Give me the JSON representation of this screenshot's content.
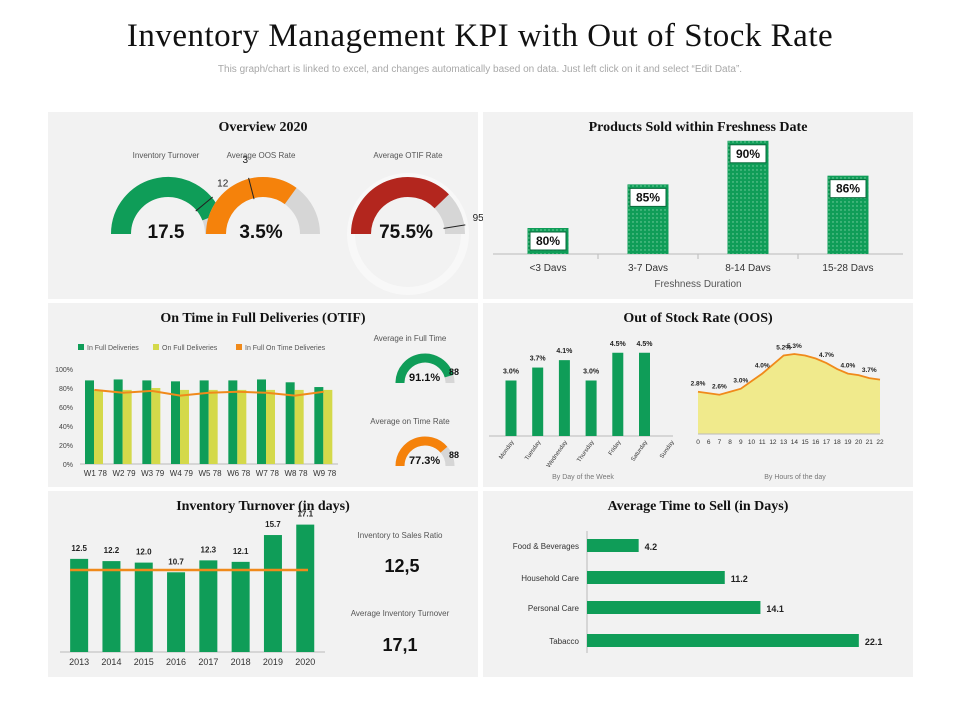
{
  "header": {
    "title": "Inventory Management KPI with Out of Stock Rate",
    "subtitle": "This graph/chart is linked to excel, and changes automatically based on data. Just left click on it and select “Edit Data”."
  },
  "colors": {
    "green": "#0f9d58",
    "orange": "#f5820b",
    "red": "#b3261e",
    "yellow": "#d4d94a",
    "grey": "#d6d6d6",
    "area": "#f0ea8c",
    "line": "#f08a1b"
  },
  "overview": {
    "title": "Overview 2020",
    "gauges": [
      {
        "label": "Inventory Turnover",
        "value_text": "17.5",
        "fraction": 0.88,
        "target": "12",
        "target_fraction": 0.78,
        "color": "green"
      },
      {
        "label": "Average OOS Rate",
        "value_text": "3.5%",
        "fraction": 0.7,
        "target": "3",
        "target_fraction": 0.42,
        "color": "orange"
      },
      {
        "label": "Average OTIF Rate",
        "value_text": "75.5%",
        "fraction": 0.755,
        "target": "95",
        "target_fraction": 0.95,
        "color": "red"
      }
    ]
  },
  "chart_data": [
    {
      "id": "freshness",
      "type": "bar",
      "title": "Products Sold within Freshness Date",
      "categories": [
        "<3 Davs",
        "3-7 Davs",
        "8-14 Davs",
        "15-28 Davs"
      ],
      "values": [
        80,
        85,
        90,
        86
      ],
      "value_labels": [
        "80%",
        "85%",
        "90%",
        "86%"
      ],
      "xlabel": "Freshness Duration",
      "ylim": [
        75,
        92
      ]
    },
    {
      "id": "otif",
      "type": "bar",
      "title": "On Time in Full Deliveries (OTIF)",
      "categories": [
        "W1 78",
        "W2 79",
        "W3 79",
        "W4 79",
        "W5 78",
        "W6 78",
        "W7 78",
        "W8 78",
        "W9 78"
      ],
      "series": [
        {
          "name": "In Full Deliveries",
          "values": [
            88,
            89,
            88,
            87,
            88,
            88,
            89,
            86,
            81
          ]
        },
        {
          "name": "On Full Deliveries",
          "values": [
            78,
            78,
            80,
            78,
            78,
            78,
            78,
            78,
            78
          ]
        },
        {
          "name": "In Full On Time Deliveries",
          "values": [
            78,
            75,
            77,
            72,
            75,
            76,
            75,
            72,
            76
          ]
        }
      ],
      "yticks": [
        "0%",
        "20%",
        "40%",
        "60%",
        "80%",
        "100%"
      ],
      "ylim": [
        0,
        100
      ],
      "side_gauges": [
        {
          "label": "Average in Full Time",
          "value_text": "91.1%",
          "fraction": 0.911,
          "target": "88",
          "color": "green"
        },
        {
          "label": "Average on Time Rate",
          "value_text": "77.3%",
          "fraction": 0.773,
          "target": "88",
          "color": "orange"
        }
      ]
    },
    {
      "id": "oos_week",
      "type": "bar",
      "title": "Out of Stock Rate (OOS)",
      "categories": [
        "Monday",
        "Tuesday",
        "Wednesday",
        "Thursday",
        "Friday",
        "Saturday",
        "Sunday"
      ],
      "values": [
        3.0,
        3.7,
        4.1,
        3.0,
        4.5,
        4.5,
        null
      ],
      "value_labels": [
        "3.0%",
        "3.7%",
        "4.1%",
        "3.0%",
        "4.5%",
        "4.5%",
        ""
      ],
      "xlabel": "By Day of the Week",
      "ylim": [
        0,
        5
      ]
    },
    {
      "id": "oos_hour",
      "type": "area",
      "x": [
        "0",
        "6",
        "7",
        "8",
        "9",
        "10",
        "11",
        "12",
        "13",
        "14",
        "15",
        "16",
        "17",
        "18",
        "19",
        "20",
        "21",
        "22"
      ],
      "values": [
        2.8,
        2.7,
        2.6,
        2.8,
        3.0,
        3.5,
        4.0,
        4.6,
        5.2,
        5.3,
        5.2,
        5.0,
        4.7,
        4.3,
        4.0,
        3.9,
        3.7,
        3.6
      ],
      "labels": [
        {
          "i": 0,
          "text": "2.8%"
        },
        {
          "i": 2,
          "text": "2.6%"
        },
        {
          "i": 4,
          "text": "3.0%"
        },
        {
          "i": 6,
          "text": "4.0%"
        },
        {
          "i": 8,
          "text": "5.2%"
        },
        {
          "i": 9,
          "text": "5.3%"
        },
        {
          "i": 12,
          "text": "4.7%"
        },
        {
          "i": 14,
          "text": "4.0%"
        },
        {
          "i": 16,
          "text": "3.7%"
        }
      ],
      "xlabel": "By Hours of the day",
      "ylim": [
        0,
        5.6
      ]
    },
    {
      "id": "turnover",
      "type": "bar",
      "title": "Inventory Turnover (in days)",
      "categories": [
        "2013",
        "2014",
        "2015",
        "2016",
        "2017",
        "2018",
        "2019",
        "2020"
      ],
      "values": [
        12.5,
        12.2,
        12.0,
        10.7,
        12.3,
        12.1,
        15.7,
        17.1
      ],
      "value_labels": [
        "12.5",
        "12.2",
        "12.0",
        "10.7",
        "12.3",
        "12.1",
        "15.7",
        "17.1"
      ],
      "reference_line": 11.0,
      "ylim": [
        0,
        18
      ]
    },
    {
      "id": "time_to_sell",
      "type": "bar",
      "orientation": "horizontal",
      "title": "Average Time to Sell (in Days)",
      "categories": [
        "Food & Beverages",
        "Household Care",
        "Personal Care",
        "Tabacco"
      ],
      "values": [
        4.2,
        11.2,
        14.1,
        22.1
      ],
      "value_labels": [
        "4.2",
        "11.2",
        "14.1",
        "22.1"
      ],
      "xlim": [
        0,
        23
      ]
    }
  ],
  "turnover_stats": {
    "ratio_label": "Inventory to Sales Ratio",
    "ratio_value": "12,5",
    "avg_label": "Average Inventory Turnover",
    "avg_value": "17,1"
  }
}
